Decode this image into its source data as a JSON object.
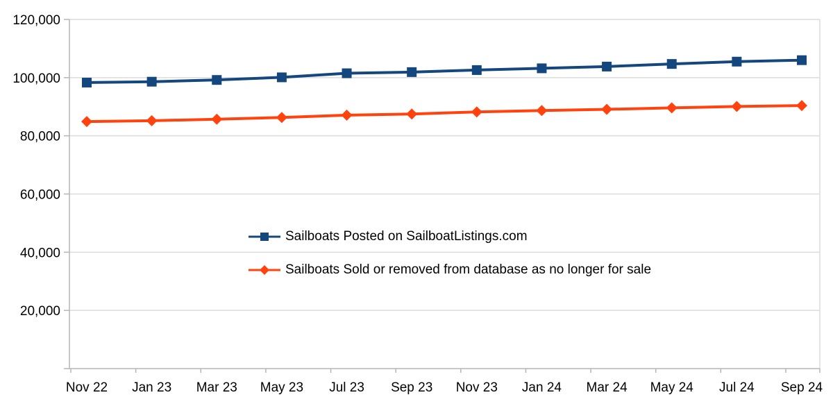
{
  "chart_data": {
    "type": "line",
    "title": "",
    "xlabel": "",
    "ylabel": "",
    "x": [
      "Nov 22",
      "Jan 23",
      "Mar 23",
      "May 23",
      "Jul 23",
      "Sep 23",
      "Nov 23",
      "Jan 24",
      "Mar 24",
      "May 24",
      "Jul 24",
      "Sep 24"
    ],
    "series": [
      {
        "name": "Sailboats Posted on SailboatListings.com",
        "color": "#14477E",
        "marker": "square",
        "values": [
          98300,
          98600,
          99200,
          100100,
          101500,
          101900,
          102600,
          103200,
          103800,
          104700,
          105500,
          106000
        ]
      },
      {
        "name": "Sailboats Sold or removed from database as no longer for sale",
        "color": "#FF420E",
        "marker": "diamond",
        "values": [
          84900,
          85200,
          85700,
          86300,
          87100,
          87500,
          88200,
          88700,
          89100,
          89600,
          90100,
          90400
        ]
      }
    ],
    "ylim": [
      0,
      120000
    ],
    "ytick_step": 20000,
    "yticks": [
      20000,
      40000,
      60000,
      80000,
      100000,
      120000
    ],
    "ytick_labels": [
      "20,000",
      "40,000",
      "60,000",
      "80,000",
      "100,000",
      "120,000"
    ],
    "grid": true,
    "legend_position": "inside-center-left",
    "colors": {
      "gridline": "#DCDCDC",
      "axis": "#B5B5B5",
      "text": "#000000",
      "background": "#FFFFFF"
    }
  }
}
